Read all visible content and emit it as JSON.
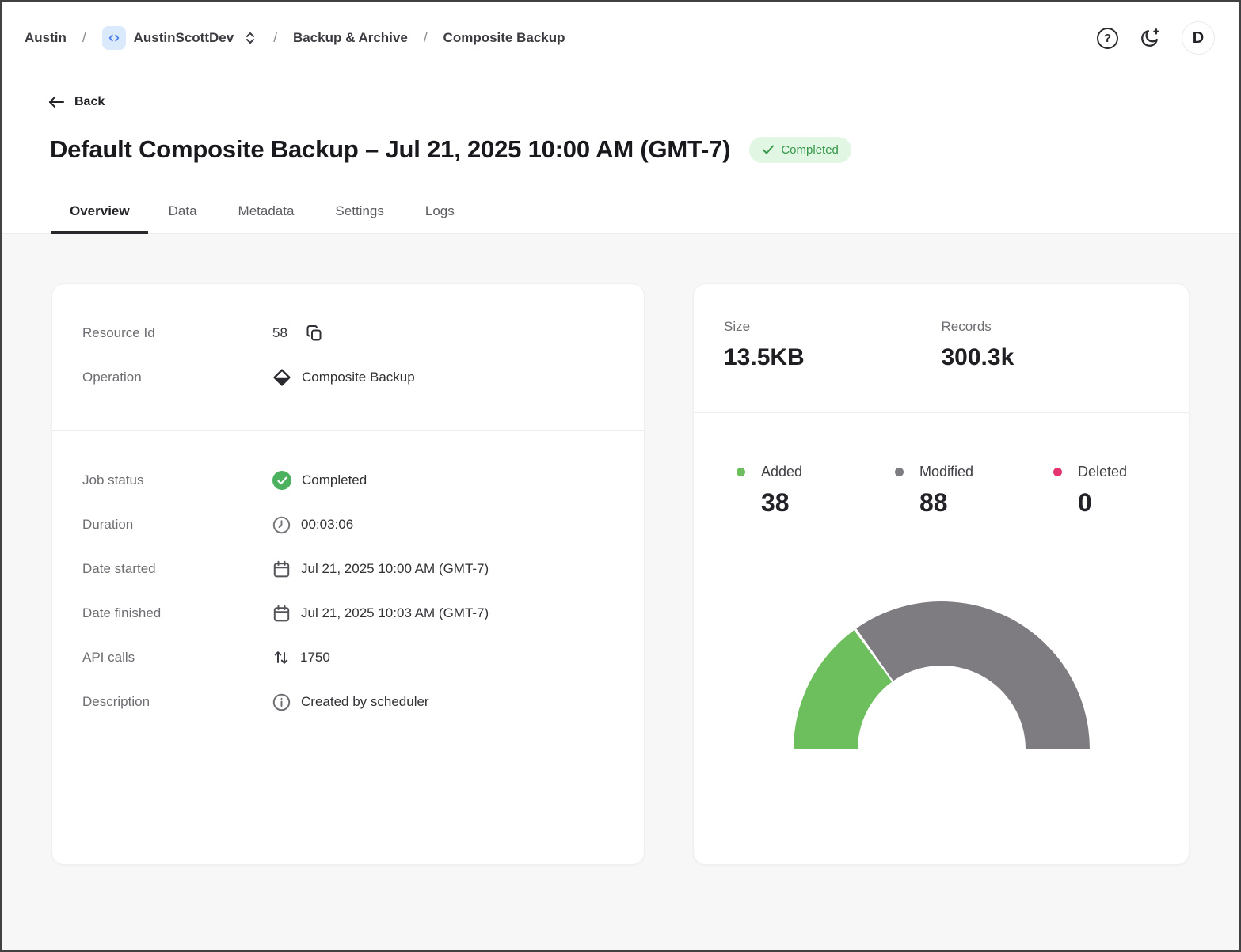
{
  "breadcrumb": {
    "separator": "/",
    "items": [
      "Austin",
      "AustinScottDev",
      "Backup & Archive",
      "Composite Backup"
    ]
  },
  "top_bar": {
    "avatar_initial": "D"
  },
  "page": {
    "back_label": "Back",
    "title": "Default Composite Backup – Jul 21, 2025 10:00 AM (GMT-7)",
    "status_badge": "Completed"
  },
  "tabs": [
    {
      "label": "Overview",
      "active": true
    },
    {
      "label": "Data",
      "active": false
    },
    {
      "label": "Metadata",
      "active": false
    },
    {
      "label": "Settings",
      "active": false
    },
    {
      "label": "Logs",
      "active": false
    }
  ],
  "details_card": {
    "resource_id_label": "Resource Id",
    "resource_id_value": "58",
    "operation_label": "Operation",
    "operation_value": "Composite Backup",
    "job_rows": [
      {
        "label": "Job status",
        "value": "Completed",
        "icon": "check-circle"
      },
      {
        "label": "Duration",
        "value": "00:03:06",
        "icon": "clock"
      },
      {
        "label": "Date started",
        "value": "Jul 21, 2025 10:00 AM (GMT-7)",
        "icon": "calendar"
      },
      {
        "label": "Date finished",
        "value": "Jul 21, 2025 10:03 AM (GMT-7)",
        "icon": "calendar"
      },
      {
        "label": "API calls",
        "value": "1750",
        "icon": "arrows-up-down"
      },
      {
        "label": "Description",
        "value": "Created by scheduler",
        "icon": "info-circle"
      }
    ]
  },
  "stats_card": {
    "size_label": "Size",
    "size_value": "13.5KB",
    "records_label": "Records",
    "records_value": "300.3k"
  },
  "chart_data": {
    "type": "pie",
    "subtype": "half-donut-gauge",
    "categories": [
      "Added",
      "Modified",
      "Deleted"
    ],
    "values": [
      38,
      88,
      0
    ],
    "colors": [
      "#6dbf5d",
      "#7e7c80",
      "#e4356e"
    ],
    "start_angle": 180,
    "end_angle": 0,
    "legend_position": "top",
    "title": ""
  },
  "colors": {
    "status_green": "#35984a",
    "status_green_bg": "#e1f6e3",
    "check_circle_green": "#4db05e",
    "brand_blue": "#4c80ee",
    "brand_blue_bg": "#dbe9fc"
  }
}
